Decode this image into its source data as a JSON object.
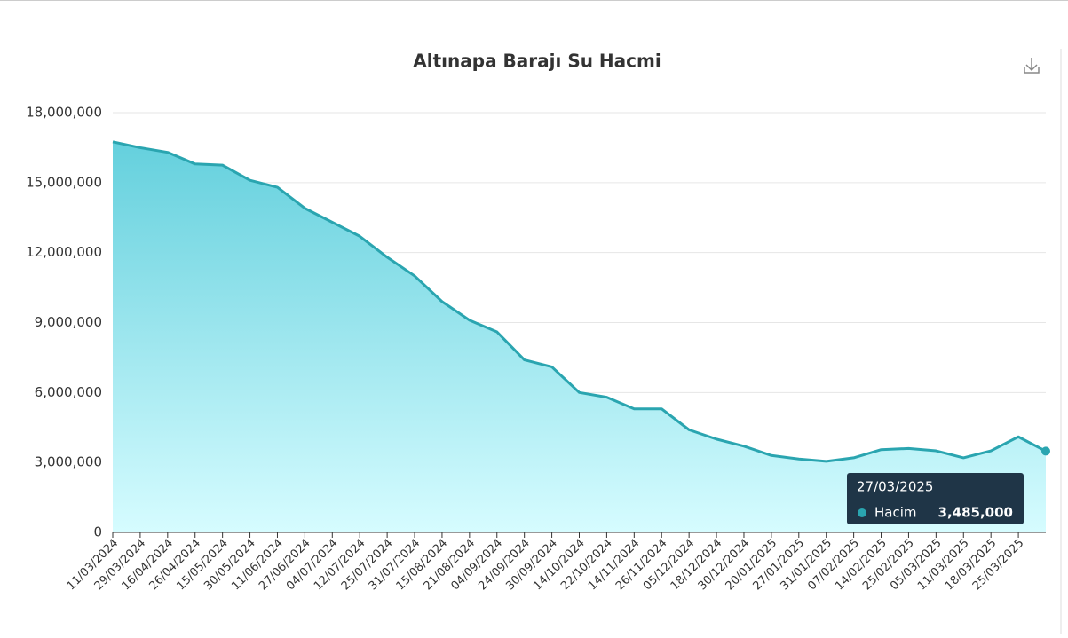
{
  "chart_data": {
    "type": "area",
    "title": "Altınapa Barajı Su Hacmi",
    "categories": [
      "11/03/2024",
      "29/03/2024",
      "16/04/2024",
      "26/04/2024",
      "15/05/2024",
      "30/05/2024",
      "11/06/2024",
      "27/06/2024",
      "04/07/2024",
      "12/07/2024",
      "25/07/2024",
      "31/07/2024",
      "15/08/2024",
      "21/08/2024",
      "04/09/2024",
      "24/09/2024",
      "30/09/2024",
      "14/10/2024",
      "22/10/2024",
      "14/11/2024",
      "26/11/2024",
      "05/12/2024",
      "18/12/2024",
      "30/12/2024",
      "20/01/2025",
      "27/01/2025",
      "31/01/2025",
      "07/02/2025",
      "14/02/2025",
      "25/02/2025",
      "05/03/2025",
      "11/03/2025",
      "18/03/2025",
      "25/03/2025",
      null
    ],
    "series": [
      {
        "name": "Hacim",
        "color": "#2aa5b0",
        "values": [
          16750000,
          16500000,
          16300000,
          15800000,
          15750000,
          15100000,
          14800000,
          13900000,
          13300000,
          12700000,
          11800000,
          11000000,
          9900000,
          9100000,
          8600000,
          7400000,
          7100000,
          6000000,
          5800000,
          5300000,
          5300000,
          4400000,
          4000000,
          3700000,
          3300000,
          3150000,
          3050000,
          3200000,
          3550000,
          3600000,
          3500000,
          3200000,
          3500000,
          4100000,
          3485000
        ]
      }
    ],
    "ylim": [
      0,
      18000000
    ],
    "yticks": [
      0,
      {
        "value": 3000000,
        "label": "3,000,000"
      },
      {
        "value": 6000000,
        "label": "6,000,000"
      },
      {
        "value": 9000000,
        "label": "9,000,000"
      },
      {
        "value": 12000000,
        "label": "12,000,000"
      },
      {
        "value": 15000000,
        "label": "15,000,000"
      },
      {
        "value": 18000000,
        "label": "18,000,000"
      }
    ],
    "grid": true,
    "tooltip": {
      "title": "27/03/2025",
      "value_label": "3,485,000"
    }
  }
}
